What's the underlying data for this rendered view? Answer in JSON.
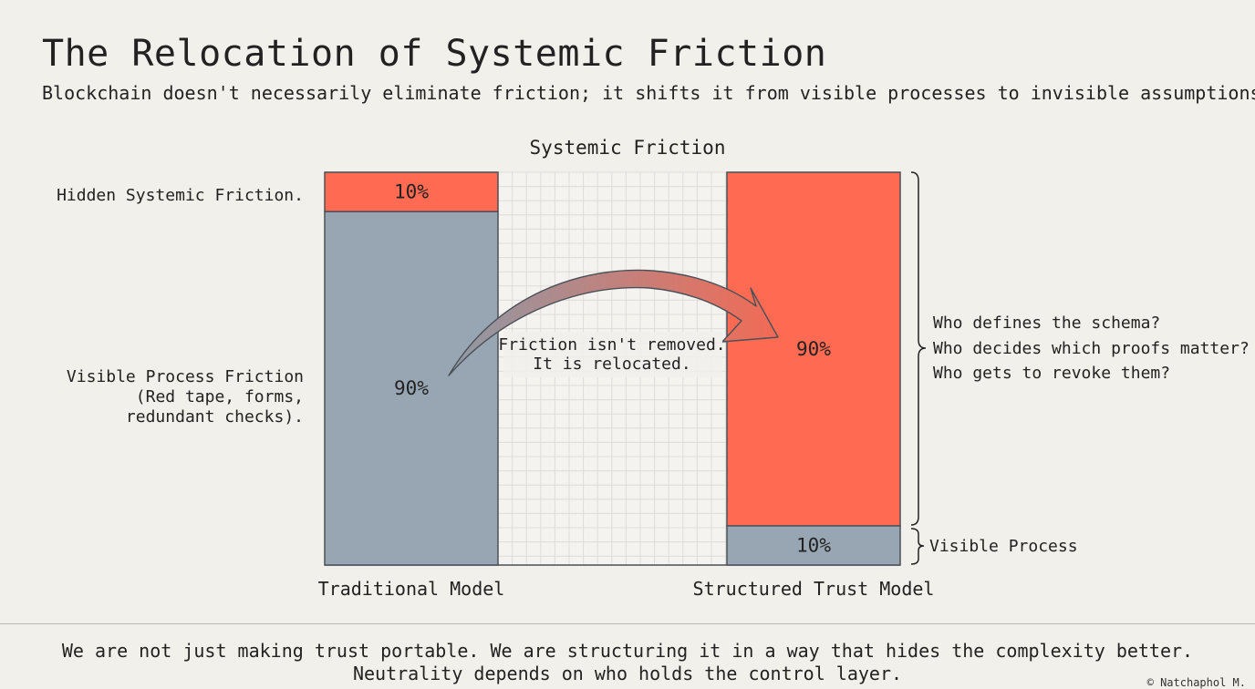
{
  "header": {
    "title": "The Relocation of Systemic Friction",
    "subtitle": "Blockchain doesn't necessarily eliminate friction; it shifts it from visible processes to invisible assumptions."
  },
  "chart_data": {
    "type": "bar",
    "stacked": true,
    "title": "Systemic Friction",
    "categories": [
      "Traditional Model",
      "Structured Trust Model"
    ],
    "series": [
      {
        "name": "Visible Process",
        "values": [
          90,
          10
        ],
        "labels": [
          "90%",
          "10%"
        ],
        "color": "#98a6b3"
      },
      {
        "name": "Hidden Systemic Friction",
        "values": [
          10,
          90
        ],
        "labels": [
          "10%",
          "90%"
        ],
        "color": "#ff6b52"
      }
    ],
    "ylim": [
      0,
      100
    ],
    "grid": true,
    "left_labels": {
      "hidden": "Hidden Systemic Friction.",
      "visible_lines": [
        "Visible Process Friction",
        "(Red tape, forms,",
        "redundant checks)."
      ]
    },
    "arrow_annotation": [
      "Friction isn't removed.",
      "It is relocated."
    ],
    "right_annotation": {
      "questions": [
        "Who defines the schema?",
        "Who decides which proofs matter?",
        "Who gets to revoke them?"
      ],
      "visible_label": "Visible Process"
    }
  },
  "footer": {
    "line1": "We are not just making trust portable. We are structuring it in a way that hides the complexity better.",
    "line2": "Neutrality depends on who holds the control layer.",
    "credit": "© Natchaphol M."
  },
  "colors": {
    "background": "#f1f0eb",
    "visible": "#98a6b3",
    "hidden": "#ff6b52",
    "grid": "#dedcd6",
    "outline": "#4a5058"
  }
}
